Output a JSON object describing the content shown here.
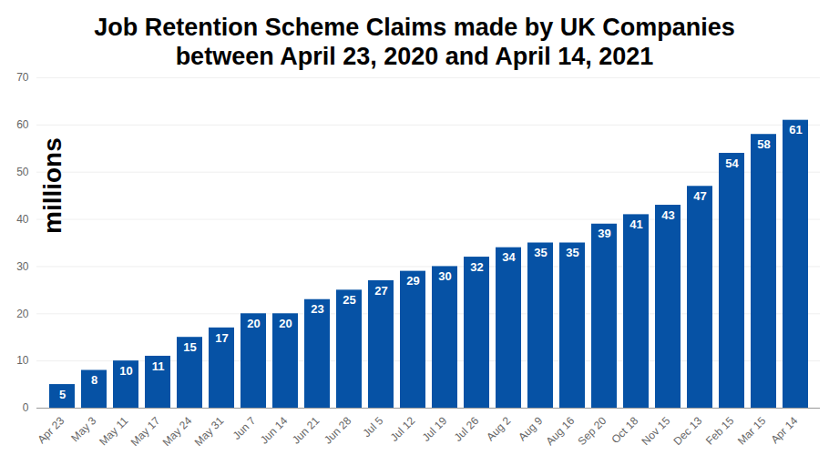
{
  "chart_data": {
    "type": "bar",
    "title": "Job Retention Scheme Claims made by UK Companies\nbetween April 23, 2020 and April 14, 2021",
    "y_label": "millions",
    "categories": [
      "Apr 23",
      "May 3",
      "May 11",
      "May 17",
      "May 24",
      "May 31",
      "Jun 7",
      "Jun 14",
      "Jun 21",
      "Jun 28",
      "Jul 5",
      "Jul 12",
      "Jul 19",
      "Jul 26",
      "Aug 2",
      "Aug 9",
      "Aug 16",
      "Sep 20",
      "Oct 18",
      "Nov 15",
      "Dec 13",
      "Feb 15",
      "Mar 15",
      "Apr 14"
    ],
    "values": [
      5,
      8,
      10,
      11,
      15,
      17,
      20,
      20,
      23,
      25,
      27,
      29,
      30,
      32,
      34,
      35,
      35,
      39,
      41,
      43,
      47,
      54,
      58,
      61
    ],
    "color": "#0652a5",
    "ylim": [
      0,
      70
    ],
    "yticks": [
      0,
      10,
      20,
      30,
      40,
      50,
      60,
      70
    ],
    "grid": true,
    "data_labels": true
  }
}
